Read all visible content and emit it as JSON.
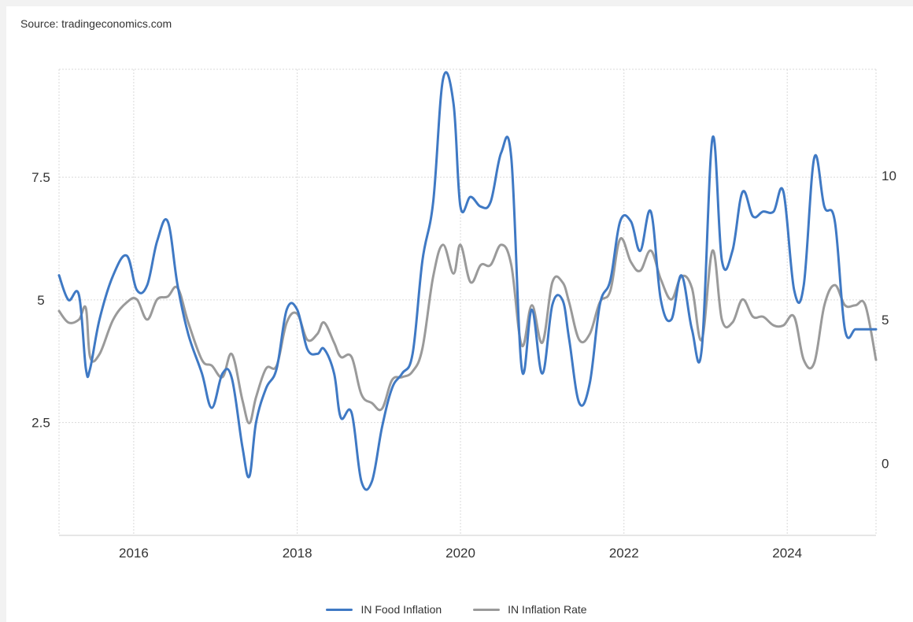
{
  "source": "Source: tradingeconomics.com",
  "colors": {
    "food": "#3f79c4",
    "rate": "#9a9a9a",
    "grid": "#d9d9d9"
  },
  "chart_data": {
    "type": "line",
    "x_axis": {
      "type": "time",
      "range": [
        "2015-02-01",
        "2025-02-01"
      ],
      "ticks": [
        "2016",
        "2018",
        "2020",
        "2022",
        "2024"
      ]
    },
    "y_axis_left": {
      "range": [
        0.2,
        9.7
      ],
      "ticks": [
        "2.5",
        "5",
        "7.5"
      ],
      "grid": true
    },
    "y_axis_right": {
      "range": [
        -2.5,
        13.7
      ],
      "ticks": [
        "0",
        "5",
        "10"
      ]
    },
    "legend_position": "bottom",
    "series": [
      {
        "name": "IN Food Inflation",
        "axis": "left",
        "color": "#3f79c4",
        "x": [
          "2015-02-01",
          "2015-03-15",
          "2015-05-01",
          "2015-06-01",
          "2015-06-20",
          "2015-08-01",
          "2015-10-01",
          "2015-12-01",
          "2016-01-15",
          "2016-03-01",
          "2016-04-15",
          "2016-06-01",
          "2016-07-15",
          "2016-09-01",
          "2016-11-01",
          "2016-12-15",
          "2017-02-01",
          "2017-03-15",
          "2017-05-01",
          "2017-06-01",
          "2017-07-01",
          "2017-08-15",
          "2017-10-01",
          "2017-11-15",
          "2018-01-01",
          "2018-02-15",
          "2018-04-01",
          "2018-05-01",
          "2018-06-15",
          "2018-07-15",
          "2018-09-01",
          "2018-10-15",
          "2018-12-01",
          "2019-01-15",
          "2019-03-01",
          "2019-04-15",
          "2019-06-01",
          "2019-07-15",
          "2019-09-01",
          "2019-10-15",
          "2019-12-01",
          "2020-01-01",
          "2020-02-15",
          "2020-04-01",
          "2020-05-15",
          "2020-07-01",
          "2020-08-15",
          "2020-10-01",
          "2020-11-15",
          "2021-01-01",
          "2021-02-15",
          "2021-04-01",
          "2021-05-01",
          "2021-06-15",
          "2021-08-01",
          "2021-09-15",
          "2021-11-01",
          "2021-12-15",
          "2022-02-01",
          "2022-03-15",
          "2022-05-01",
          "2022-06-15",
          "2022-08-01",
          "2022-09-15",
          "2022-11-01",
          "2022-12-15",
          "2023-02-01",
          "2023-03-15",
          "2023-05-01",
          "2023-06-15",
          "2023-08-01",
          "2023-09-15",
          "2023-11-01",
          "2023-12-15",
          "2024-02-01",
          "2024-03-15",
          "2024-05-01",
          "2024-06-15",
          "2024-08-01",
          "2024-09-15",
          "2024-11-01",
          "2024-12-15",
          "2025-02-01"
        ],
        "values": [
          5.5,
          5.0,
          5.1,
          3.6,
          3.6,
          4.6,
          5.5,
          5.9,
          5.2,
          5.3,
          6.2,
          6.6,
          5.3,
          4.3,
          3.5,
          2.8,
          3.5,
          3.4,
          2.0,
          1.4,
          2.5,
          3.2,
          3.6,
          4.8,
          4.8,
          4.0,
          3.9,
          4.0,
          3.5,
          2.6,
          2.7,
          1.3,
          1.3,
          2.4,
          3.2,
          3.5,
          3.9,
          5.8,
          7.0,
          9.5,
          9.0,
          6.9,
          7.1,
          6.9,
          7.0,
          8.0,
          7.9,
          3.6,
          4.8,
          3.5,
          4.9,
          5.0,
          4.2,
          2.9,
          3.3,
          4.9,
          5.4,
          6.6,
          6.6,
          6.0,
          6.8,
          5.0,
          4.6,
          5.5,
          4.4,
          4.0,
          8.3,
          5.8,
          6.0,
          7.2,
          6.7,
          6.8,
          6.8,
          7.2,
          5.2,
          5.3,
          7.9,
          6.9,
          6.6,
          4.4,
          4.4,
          4.4,
          4.4
        ]
      },
      {
        "name": "IN Inflation Rate",
        "axis": "right",
        "color": "#9a9a9a",
        "x": [
          "2015-02-01",
          "2015-03-15",
          "2015-05-01",
          "2015-06-01",
          "2015-06-20",
          "2015-08-01",
          "2015-10-01",
          "2015-12-01",
          "2016-01-15",
          "2016-03-01",
          "2016-04-15",
          "2016-06-01",
          "2016-07-15",
          "2016-09-01",
          "2016-11-01",
          "2016-12-15",
          "2017-02-01",
          "2017-03-15",
          "2017-05-01",
          "2017-06-01",
          "2017-07-01",
          "2017-08-15",
          "2017-10-01",
          "2017-11-15",
          "2018-01-01",
          "2018-02-15",
          "2018-04-01",
          "2018-05-01",
          "2018-06-15",
          "2018-07-15",
          "2018-09-01",
          "2018-10-15",
          "2018-12-01",
          "2019-01-15",
          "2019-03-01",
          "2019-04-15",
          "2019-06-01",
          "2019-07-15",
          "2019-09-01",
          "2019-10-15",
          "2019-12-01",
          "2020-01-01",
          "2020-02-15",
          "2020-04-01",
          "2020-05-15",
          "2020-07-01",
          "2020-08-15",
          "2020-10-01",
          "2020-11-15",
          "2021-01-01",
          "2021-02-15",
          "2021-04-01",
          "2021-05-01",
          "2021-06-15",
          "2021-08-01",
          "2021-09-15",
          "2021-11-01",
          "2021-12-15",
          "2022-02-01",
          "2022-03-15",
          "2022-05-01",
          "2022-06-15",
          "2022-08-01",
          "2022-09-15",
          "2022-11-01",
          "2022-12-15",
          "2023-02-01",
          "2023-03-15",
          "2023-05-01",
          "2023-06-15",
          "2023-08-01",
          "2023-09-15",
          "2023-11-01",
          "2023-12-15",
          "2024-02-01",
          "2024-03-15",
          "2024-05-01",
          "2024-06-15",
          "2024-08-01",
          "2024-09-15",
          "2024-11-01",
          "2024-12-15",
          "2025-02-01"
        ],
        "values": [
          5.3,
          4.9,
          5.0,
          5.4,
          3.7,
          3.8,
          5.0,
          5.6,
          5.7,
          5.0,
          5.7,
          5.8,
          6.1,
          4.9,
          3.6,
          3.4,
          3.0,
          3.8,
          2.2,
          1.4,
          2.3,
          3.3,
          3.4,
          4.9,
          5.2,
          4.3,
          4.5,
          4.9,
          4.2,
          3.7,
          3.7,
          2.4,
          2.1,
          1.9,
          2.9,
          3.0,
          3.2,
          4.0,
          6.5,
          7.6,
          6.6,
          7.6,
          6.3,
          6.9,
          6.9,
          7.6,
          6.9,
          4.1,
          5.5,
          4.2,
          6.3,
          6.3,
          5.6,
          4.3,
          4.5,
          5.6,
          6.0,
          7.8,
          7.0,
          6.7,
          7.4,
          6.4,
          5.7,
          6.5,
          6.1,
          4.3,
          7.4,
          5.0,
          4.9,
          5.7,
          5.1,
          5.1,
          4.8,
          4.8,
          5.1,
          3.6,
          3.5,
          5.5,
          6.2,
          5.5,
          5.5,
          5.5,
          3.6
        ]
      }
    ]
  }
}
